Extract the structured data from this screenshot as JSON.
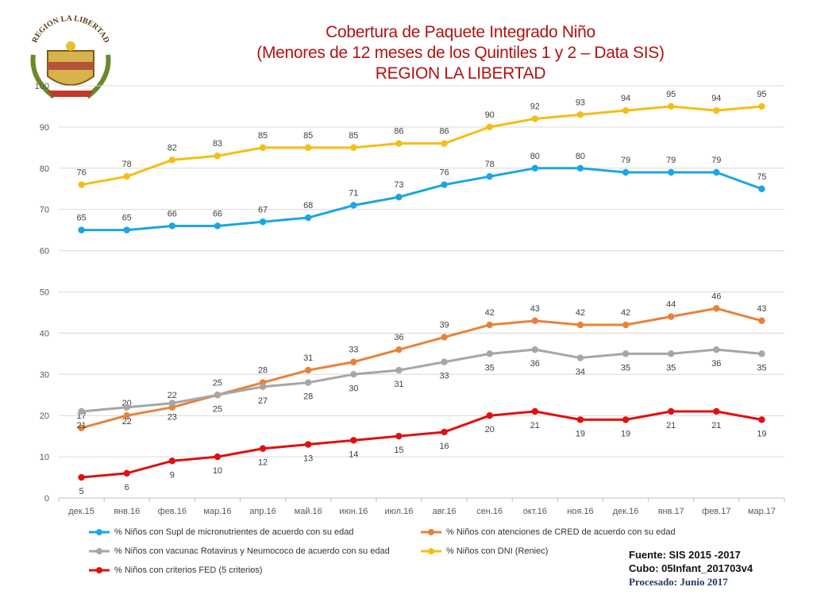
{
  "title": {
    "line1": "Cobertura de Paquete Integrado Niño",
    "line2": "(Menores de 12 meses de los Quintiles 1 y 2 – Data SIS)",
    "line3": "REGION LA LIBERTAD"
  },
  "logo": {
    "arc_text": "REGION LA LIBERTAD"
  },
  "chart_data": {
    "type": "line",
    "categories": [
      "дек.15",
      "янв.16",
      "фев.16",
      "мар.16",
      "апр.16",
      "май.16",
      "июн.16",
      "июл.16",
      "авг.16",
      "сен.16",
      "окт.16",
      "ноя.16",
      "дек.16",
      "янв.17",
      "фев.17",
      "мар.17"
    ],
    "ylim": [
      0,
      100
    ],
    "yticks": [
      0,
      10,
      20,
      30,
      40,
      50,
      60,
      70,
      80,
      90,
      100
    ],
    "series": [
      {
        "name": "% Niños con Supl de micronutrientes de acuerdo con su edad",
        "color": "#1aa7e0",
        "values": [
          65,
          65,
          66,
          66,
          67,
          68,
          71,
          73,
          76,
          78,
          80,
          80,
          79,
          79,
          79,
          75
        ],
        "label_pos": "above"
      },
      {
        "name": "% Niños  con atenciones de CRED de acuerdo con su edad",
        "color": "#e8823a",
        "values": [
          17,
          20,
          22,
          25,
          28,
          31,
          33,
          36,
          39,
          42,
          43,
          42,
          42,
          44,
          46,
          43
        ],
        "label_pos": "above"
      },
      {
        "name": "% Niños con vacunac Rotavirus y Neumococo de acuerdo con su edad",
        "color": "#a6a6a6",
        "values": [
          21,
          22,
          23,
          25,
          27,
          28,
          30,
          31,
          33,
          35,
          36,
          34,
          35,
          35,
          36,
          35
        ],
        "label_pos": "below"
      },
      {
        "name": "% Niños con DNI (Reniec)",
        "color": "#f5bd18",
        "values": [
          76,
          78,
          82,
          83,
          85,
          85,
          85,
          86,
          86,
          90,
          92,
          93,
          94,
          95,
          94,
          95
        ],
        "label_pos": "above"
      },
      {
        "name": "% Niños con criterios FED (5 criterios)",
        "color": "#e01010",
        "values": [
          5,
          6,
          9,
          10,
          12,
          13,
          14,
          15,
          16,
          20,
          21,
          19,
          19,
          21,
          21,
          19
        ],
        "label_pos": "below"
      }
    ]
  },
  "source": {
    "line1": "Fuente: SIS 2015 -2017",
    "line2": "Cubo:  05Infant_201703v4",
    "line3": "Procesado: Junio 2017"
  }
}
